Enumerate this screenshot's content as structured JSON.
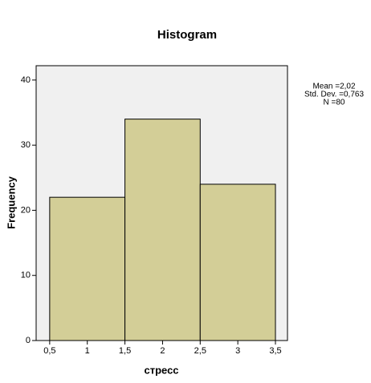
{
  "chart_data": {
    "type": "histogram",
    "title": "Histogram",
    "x_label": "стресс",
    "y_label": "Frequency",
    "bins": [
      0.5,
      1.5,
      2.5,
      3.5
    ],
    "values": [
      22,
      34,
      24
    ],
    "color": "#d3ce97",
    "xlim": [
      0.32,
      3.66
    ],
    "ylim": [
      0,
      42.2
    ],
    "xticks": [
      {
        "value": 0.5,
        "label": "0,5"
      },
      1,
      {
        "value": 1.5,
        "label": "1,5"
      },
      2,
      {
        "value": 2.5,
        "label": "2,5"
      },
      3,
      {
        "value": 3.5,
        "label": "3,5"
      }
    ],
    "yticks": [
      0,
      10,
      20,
      30,
      40
    ],
    "annotations": [
      "Mean =2,02",
      "Std. Dev. =0,763",
      "N =80"
    ]
  }
}
